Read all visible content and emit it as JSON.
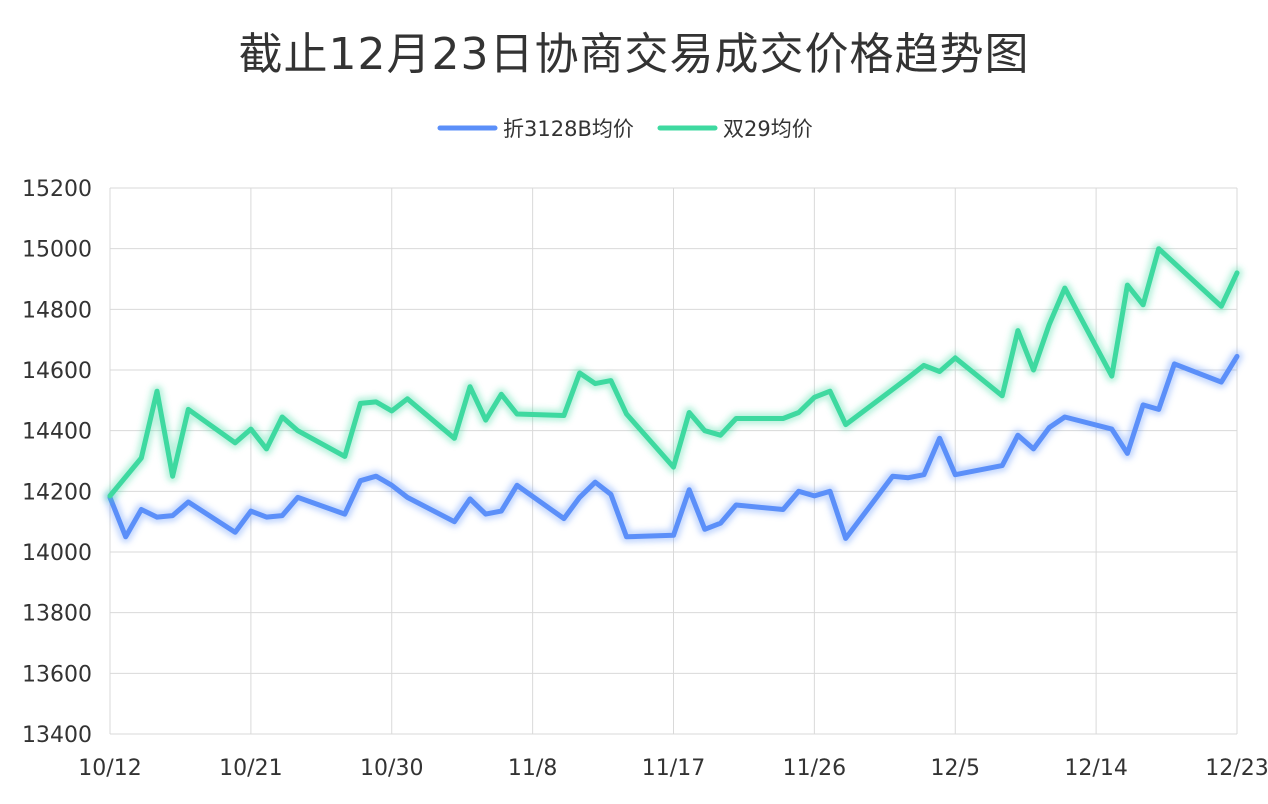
{
  "chart_data": {
    "type": "line",
    "title": "截止12月23日协商交易成交价格趋势图",
    "xlabel": "",
    "ylabel": "",
    "ylim": [
      13400,
      15200
    ],
    "ytick_step": 200,
    "xlim": [
      "10/12",
      "12/23"
    ],
    "xtick_labels": [
      "10/12",
      "10/21",
      "10/30",
      "11/8",
      "11/17",
      "11/26",
      "12/5",
      "12/14",
      "12/23"
    ],
    "grid": true,
    "legend_position": "top-center",
    "series": [
      {
        "name": "折3128B均价",
        "color": "#5B8FF9",
        "points": [
          [
            "10/12",
            14180
          ],
          [
            "10/13",
            14050
          ],
          [
            "10/14",
            14140
          ],
          [
            "10/15",
            14115
          ],
          [
            "10/16",
            14120
          ],
          [
            "10/17",
            14165
          ],
          [
            "10/20",
            14065
          ],
          [
            "10/21",
            14135
          ],
          [
            "10/22",
            14115
          ],
          [
            "10/23",
            14120
          ],
          [
            "10/24",
            14180
          ],
          [
            "10/27",
            14125
          ],
          [
            "10/28",
            14235
          ],
          [
            "10/29",
            14250
          ],
          [
            "10/30",
            14220
          ],
          [
            "10/31",
            14180
          ],
          [
            "11/3",
            14100
          ],
          [
            "11/4",
            14175
          ],
          [
            "11/5",
            14125
          ],
          [
            "11/6",
            14135
          ],
          [
            "11/7",
            14220
          ],
          [
            "11/10",
            14110
          ],
          [
            "11/11",
            14180
          ],
          [
            "11/12",
            14230
          ],
          [
            "11/13",
            14190
          ],
          [
            "11/14",
            14050
          ],
          [
            "11/17",
            14055
          ],
          [
            "11/18",
            14205
          ],
          [
            "11/19",
            14075
          ],
          [
            "11/20",
            14095
          ],
          [
            "11/21",
            14155
          ],
          [
            "11/24",
            14140
          ],
          [
            "11/25",
            14200
          ],
          [
            "11/26",
            14185
          ],
          [
            "11/27",
            14200
          ],
          [
            "11/28",
            14045
          ],
          [
            "12/1",
            14250
          ],
          [
            "12/2",
            14245
          ],
          [
            "12/3",
            14255
          ],
          [
            "12/4",
            14375
          ],
          [
            "12/5",
            14255
          ],
          [
            "12/8",
            14285
          ],
          [
            "12/9",
            14385
          ],
          [
            "12/10",
            14340
          ],
          [
            "12/11",
            14410
          ],
          [
            "12/12",
            14445
          ],
          [
            "12/15",
            14405
          ],
          [
            "12/16",
            14325
          ],
          [
            "12/17",
            14485
          ],
          [
            "12/18",
            14470
          ],
          [
            "12/19",
            14620
          ],
          [
            "12/22",
            14560
          ],
          [
            "12/23",
            14645
          ]
        ]
      },
      {
        "name": "双29均价",
        "color": "#3ED9A0",
        "points": [
          [
            "10/12",
            14185
          ],
          [
            "10/14",
            14310
          ],
          [
            "10/15",
            14530
          ],
          [
            "10/16",
            14250
          ],
          [
            "10/17",
            14470
          ],
          [
            "10/20",
            14360
          ],
          [
            "10/21",
            14405
          ],
          [
            "10/22",
            14340
          ],
          [
            "10/23",
            14445
          ],
          [
            "10/24",
            14400
          ],
          [
            "10/27",
            14315
          ],
          [
            "10/28",
            14490
          ],
          [
            "10/29",
            14495
          ],
          [
            "10/30",
            14465
          ],
          [
            "10/31",
            14505
          ],
          [
            "11/3",
            14375
          ],
          [
            "11/4",
            14545
          ],
          [
            "11/5",
            14435
          ],
          [
            "11/6",
            14520
          ],
          [
            "11/7",
            14455
          ],
          [
            "11/10",
            14450
          ],
          [
            "11/11",
            14590
          ],
          [
            "11/12",
            14555
          ],
          [
            "11/13",
            14565
          ],
          [
            "11/14",
            14455
          ],
          [
            "11/17",
            14280
          ],
          [
            "11/18",
            14460
          ],
          [
            "11/19",
            14400
          ],
          [
            "11/20",
            14385
          ],
          [
            "11/21",
            14440
          ],
          [
            "11/24",
            14440
          ],
          [
            "11/25",
            14460
          ],
          [
            "11/26",
            14510
          ],
          [
            "11/27",
            14530
          ],
          [
            "11/28",
            14420
          ],
          [
            "12/2",
            14575
          ],
          [
            "12/3",
            14615
          ],
          [
            "12/4",
            14595
          ],
          [
            "12/5",
            14640
          ],
          [
            "12/8",
            14515
          ],
          [
            "12/9",
            14730
          ],
          [
            "12/10",
            14600
          ],
          [
            "12/11",
            14750
          ],
          [
            "12/12",
            14870
          ],
          [
            "12/15",
            14580
          ],
          [
            "12/16",
            14880
          ],
          [
            "12/17",
            14815
          ],
          [
            "12/18",
            15000
          ],
          [
            "12/22",
            14810
          ],
          [
            "12/23",
            14920
          ]
        ]
      }
    ]
  }
}
